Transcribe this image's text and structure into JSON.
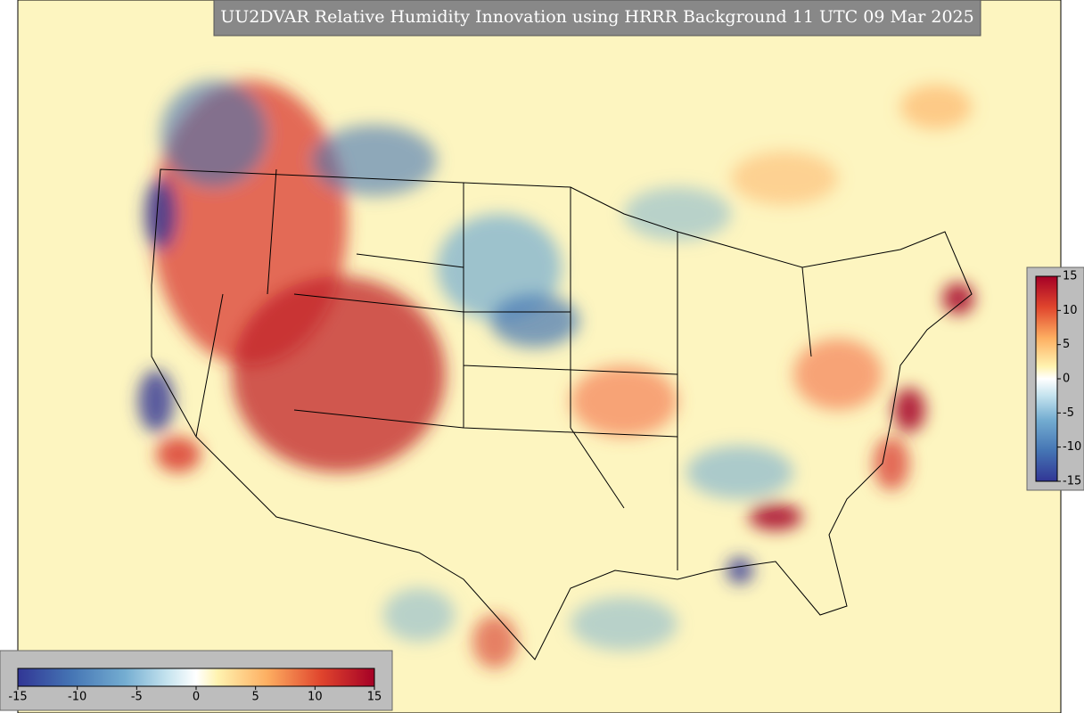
{
  "title": "UU2DVAR Relative Humidity Innovation using HRRR Background 11 UTC 09 Mar 2025",
  "colorbar_vertical": {
    "ticks": [
      15,
      10,
      5,
      0,
      -5,
      -10,
      -15
    ]
  },
  "colorbar_horizontal": {
    "ticks": [
      -15,
      -10,
      -5,
      0,
      5,
      10,
      15
    ]
  }
}
